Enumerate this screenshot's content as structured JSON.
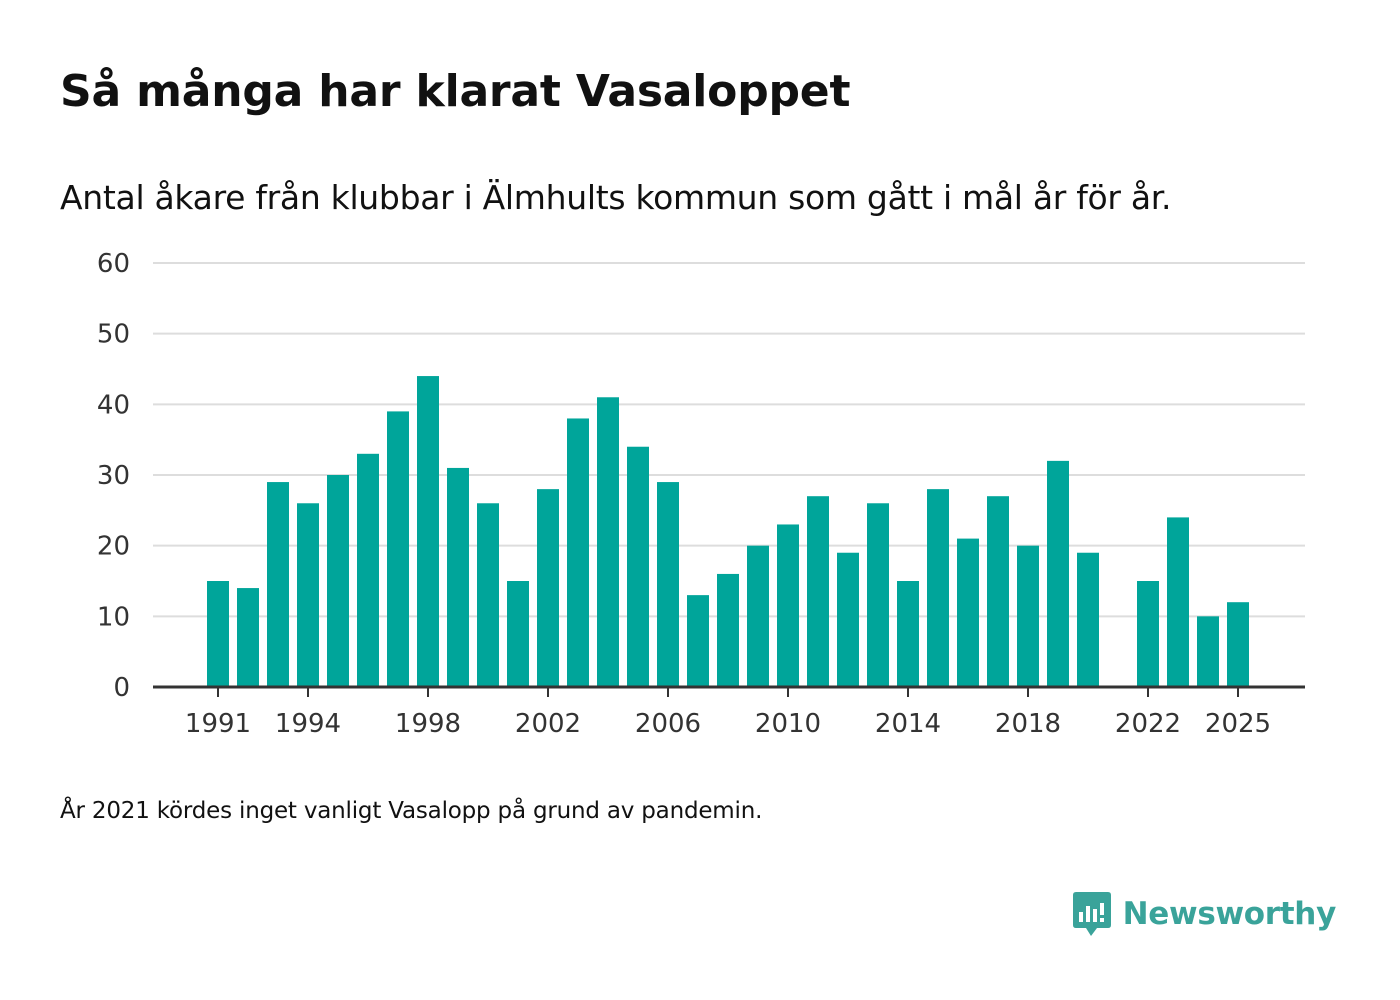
{
  "header": {
    "title": "Så många har klarat Vasaloppet",
    "subtitle": "Antal åkare från klubbar i Älmhults kommun som gått i mål år för år."
  },
  "footnote": "År 2021 kördes inget vanligt Vasalopp på grund av pandemin.",
  "brand": {
    "name": "Newsworthy",
    "icon": "newsworthy-logo-icon",
    "color": "#3aa39a"
  },
  "colors": {
    "bar": "#00a59a",
    "grid": "#dddddd",
    "axis": "#333333"
  },
  "chart_data": {
    "type": "bar",
    "title": "Så många har klarat Vasaloppet",
    "subtitle": "Antal åkare från klubbar i Älmhults kommun som gått i mål år för år.",
    "xlabel": "",
    "ylabel": "",
    "ylim": [
      0,
      60
    ],
    "yticks": [
      0,
      10,
      20,
      30,
      40,
      50,
      60
    ],
    "xticks": [
      "1991",
      "1994",
      "1998",
      "2002",
      "2006",
      "2010",
      "2014",
      "2018",
      "2022",
      "2025"
    ],
    "grid": true,
    "legend": "none",
    "categories": [
      "1991",
      "1992",
      "1993",
      "1994",
      "1995",
      "1996",
      "1997",
      "1998",
      "1999",
      "2000",
      "2001",
      "2002",
      "2003",
      "2004",
      "2005",
      "2006",
      "2007",
      "2008",
      "2009",
      "2010",
      "2011",
      "2012",
      "2013",
      "2014",
      "2015",
      "2016",
      "2017",
      "2018",
      "2019",
      "2020",
      "2021",
      "2022",
      "2023",
      "2024",
      "2025"
    ],
    "values": [
      15,
      14,
      29,
      26,
      30,
      33,
      39,
      44,
      31,
      26,
      15,
      28,
      38,
      41,
      34,
      29,
      13,
      16,
      20,
      23,
      27,
      19,
      26,
      15,
      28,
      21,
      27,
      20,
      32,
      19,
      null,
      15,
      24,
      10,
      12
    ]
  }
}
